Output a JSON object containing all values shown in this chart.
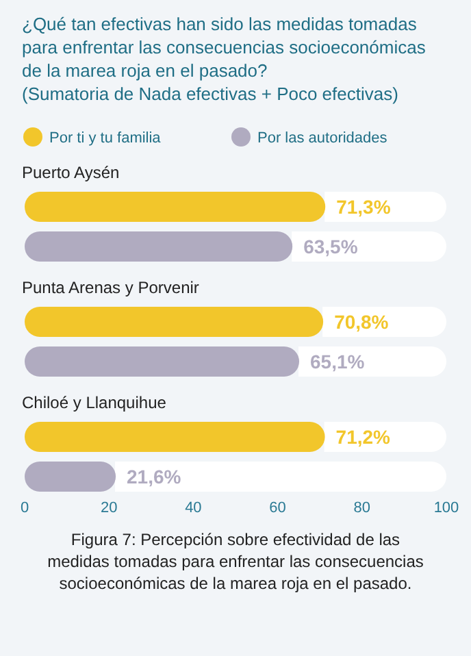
{
  "chart_data": {
    "type": "bar",
    "orientation": "horizontal",
    "title": "¿Qué tan efectivas han sido las medidas tomadas para enfrentar las consecuencias socioeconómicas de la marea roja en el pasado?",
    "subtitle": "(Sumatoria de Nada efectivas + Poco efectivas)",
    "categories": [
      "Puerto Aysén",
      "Punta Arenas y Porvenir",
      "Chiloé y Llanquihue"
    ],
    "series": [
      {
        "name": "Por ti y tu familia",
        "color": "#f2c62b",
        "values": [
          71.3,
          70.8,
          71.2
        ],
        "value_labels": [
          "71,3%",
          "70,8%",
          "71,2%"
        ]
      },
      {
        "name": "Por las autoridades",
        "color": "#b0abc0",
        "values": [
          63.5,
          65.1,
          21.6
        ],
        "value_labels": [
          "63,5%",
          "65,1%",
          "21,6%"
        ]
      }
    ],
    "xlim": [
      0,
      100
    ],
    "xticks": [
      0,
      20,
      40,
      60,
      80,
      100
    ],
    "legend": "top left",
    "grid": false,
    "annotations": [
      "Figura 7: Percepción sobre efectividad de las medidas tomadas para enfrentar las consecuencias socioeconómicas de la marea roja en el pasado."
    ]
  }
}
